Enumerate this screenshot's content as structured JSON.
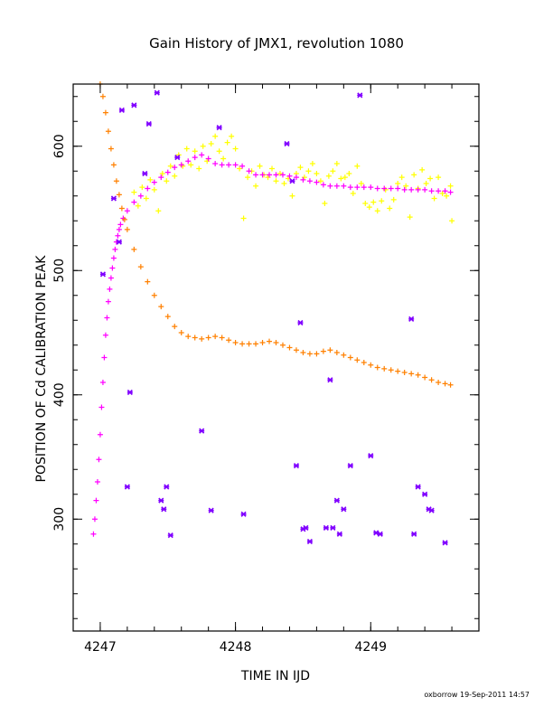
{
  "chart_data": {
    "type": "scatter",
    "title": "Gain History of JMX1, revolution 1080",
    "xlabel": "TIME IN IJD",
    "ylabel": "POSITION OF Cd CALIBRATION PEAK",
    "xlim": [
      4246.8,
      4249.8
    ],
    "ylim": [
      210,
      650
    ],
    "xticks": [
      4247,
      4248,
      4249
    ],
    "xtick_labels": [
      "4247",
      "4248",
      "4249"
    ],
    "yticks": [
      300,
      400,
      500,
      600
    ],
    "ytick_labels": [
      "300",
      "400",
      "500",
      "600"
    ],
    "grid": false,
    "legend": "none",
    "series": [
      {
        "marker": "plus",
        "color": "#FFFF00",
        "points": [
          [
            4247.25,
            563
          ],
          [
            4247.28,
            552
          ],
          [
            4247.31,
            567
          ],
          [
            4247.34,
            558
          ],
          [
            4247.37,
            573
          ],
          [
            4247.4,
            565
          ],
          [
            4247.43,
            548
          ],
          [
            4247.46,
            578
          ],
          [
            4247.49,
            572
          ],
          [
            4247.52,
            584
          ],
          [
            4247.55,
            576
          ],
          [
            4247.58,
            593
          ],
          [
            4247.61,
            584
          ],
          [
            4247.64,
            598
          ],
          [
            4247.67,
            585
          ],
          [
            4247.7,
            596
          ],
          [
            4247.73,
            582
          ],
          [
            4247.76,
            600
          ],
          [
            4247.79,
            588
          ],
          [
            4247.82,
            602
          ],
          [
            4247.85,
            608
          ],
          [
            4247.88,
            596
          ],
          [
            4247.91,
            590
          ],
          [
            4247.94,
            603
          ],
          [
            4247.97,
            608
          ],
          [
            4248.0,
            598
          ],
          [
            4248.03,
            582
          ],
          [
            4248.06,
            542
          ],
          [
            4248.09,
            575
          ],
          [
            4248.12,
            580
          ],
          [
            4248.15,
            568
          ],
          [
            4248.18,
            584
          ],
          [
            4248.21,
            577
          ],
          [
            4248.24,
            575
          ],
          [
            4248.27,
            582
          ],
          [
            4248.3,
            572
          ],
          [
            4248.33,
            578
          ],
          [
            4248.36,
            570
          ],
          [
            4248.39,
            574
          ],
          [
            4248.42,
            560
          ],
          [
            4248.45,
            578
          ],
          [
            4248.48,
            583
          ],
          [
            4248.51,
            575
          ],
          [
            4248.54,
            580
          ],
          [
            4248.57,
            586
          ],
          [
            4248.6,
            578
          ],
          [
            4248.63,
            572
          ],
          [
            4248.66,
            554
          ],
          [
            4248.69,
            576
          ],
          [
            4248.72,
            580
          ],
          [
            4248.75,
            586
          ],
          [
            4248.78,
            574
          ],
          [
            4248.81,
            575
          ],
          [
            4248.84,
            578
          ],
          [
            4248.87,
            562
          ],
          [
            4248.9,
            584
          ],
          [
            4248.93,
            570
          ],
          [
            4248.96,
            554
          ],
          [
            4248.99,
            551
          ],
          [
            4249.02,
            555
          ],
          [
            4249.05,
            548
          ],
          [
            4249.08,
            556
          ],
          [
            4249.11,
            565
          ],
          [
            4249.14,
            550
          ],
          [
            4249.17,
            557
          ],
          [
            4249.2,
            570
          ],
          [
            4249.23,
            575
          ],
          [
            4249.26,
            568
          ],
          [
            4249.29,
            543
          ],
          [
            4249.32,
            577
          ],
          [
            4249.35,
            566
          ],
          [
            4249.38,
            581
          ],
          [
            4249.41,
            570
          ],
          [
            4249.44,
            574
          ],
          [
            4249.47,
            558
          ],
          [
            4249.5,
            575
          ],
          [
            4249.53,
            562
          ],
          [
            4249.56,
            560
          ],
          [
            4249.59,
            568
          ],
          [
            4249.6,
            540
          ]
        ]
      },
      {
        "marker": "plus",
        "color": "#FF00FF",
        "points": [
          [
            4246.95,
            288
          ],
          [
            4246.96,
            300
          ],
          [
            4246.97,
            315
          ],
          [
            4246.98,
            330
          ],
          [
            4246.99,
            348
          ],
          [
            4247.0,
            368
          ],
          [
            4247.01,
            390
          ],
          [
            4247.02,
            410
          ],
          [
            4247.03,
            430
          ],
          [
            4247.04,
            448
          ],
          [
            4247.05,
            462
          ],
          [
            4247.06,
            475
          ],
          [
            4247.07,
            485
          ],
          [
            4247.08,
            494
          ],
          [
            4247.09,
            502
          ],
          [
            4247.1,
            510
          ],
          [
            4247.11,
            517
          ],
          [
            4247.12,
            523
          ],
          [
            4247.13,
            528
          ],
          [
            4247.14,
            533
          ],
          [
            4247.15,
            537
          ],
          [
            4247.17,
            542
          ],
          [
            4247.2,
            548
          ],
          [
            4247.25,
            555
          ],
          [
            4247.3,
            560
          ],
          [
            4247.35,
            566
          ],
          [
            4247.4,
            571
          ],
          [
            4247.45,
            575
          ],
          [
            4247.5,
            579
          ],
          [
            4247.55,
            583
          ],
          [
            4247.6,
            585
          ],
          [
            4247.65,
            588
          ],
          [
            4247.7,
            591
          ],
          [
            4247.75,
            593
          ],
          [
            4247.8,
            590
          ],
          [
            4247.85,
            586
          ],
          [
            4247.9,
            585
          ],
          [
            4247.95,
            585
          ],
          [
            4248.0,
            585
          ],
          [
            4248.05,
            584
          ],
          [
            4248.1,
            580
          ],
          [
            4248.15,
            577
          ],
          [
            4248.2,
            577
          ],
          [
            4248.25,
            577
          ],
          [
            4248.3,
            577
          ],
          [
            4248.35,
            577
          ],
          [
            4248.4,
            576
          ],
          [
            4248.45,
            575
          ],
          [
            4248.5,
            573
          ],
          [
            4248.55,
            572
          ],
          [
            4248.6,
            571
          ],
          [
            4248.65,
            569
          ],
          [
            4248.7,
            568
          ],
          [
            4248.75,
            568
          ],
          [
            4248.8,
            568
          ],
          [
            4248.85,
            567
          ],
          [
            4248.9,
            567
          ],
          [
            4248.95,
            567
          ],
          [
            4249.0,
            567
          ],
          [
            4249.05,
            566
          ],
          [
            4249.1,
            566
          ],
          [
            4249.15,
            566
          ],
          [
            4249.2,
            566
          ],
          [
            4249.25,
            565
          ],
          [
            4249.3,
            565
          ],
          [
            4249.35,
            565
          ],
          [
            4249.4,
            565
          ],
          [
            4249.45,
            564
          ],
          [
            4249.5,
            564
          ],
          [
            4249.55,
            564
          ],
          [
            4249.59,
            563
          ]
        ]
      },
      {
        "marker": "plus",
        "color": "#FF8000",
        "points": [
          [
            4247.0,
            650
          ],
          [
            4247.02,
            640
          ],
          [
            4247.04,
            627
          ],
          [
            4247.06,
            612
          ],
          [
            4247.08,
            598
          ],
          [
            4247.1,
            585
          ],
          [
            4247.12,
            572
          ],
          [
            4247.14,
            561
          ],
          [
            4247.16,
            550
          ],
          [
            4247.18,
            541
          ],
          [
            4247.2,
            533
          ],
          [
            4247.25,
            517
          ],
          [
            4247.3,
            503
          ],
          [
            4247.35,
            491
          ],
          [
            4247.4,
            480
          ],
          [
            4247.45,
            471
          ],
          [
            4247.5,
            463
          ],
          [
            4247.55,
            455
          ],
          [
            4247.6,
            450
          ],
          [
            4247.65,
            447
          ],
          [
            4247.7,
            446
          ],
          [
            4247.75,
            445
          ],
          [
            4247.8,
            446
          ],
          [
            4247.85,
            447
          ],
          [
            4247.9,
            446
          ],
          [
            4247.95,
            444
          ],
          [
            4248.0,
            442
          ],
          [
            4248.05,
            441
          ],
          [
            4248.1,
            441
          ],
          [
            4248.15,
            441
          ],
          [
            4248.2,
            442
          ],
          [
            4248.25,
            443
          ],
          [
            4248.3,
            442
          ],
          [
            4248.35,
            440
          ],
          [
            4248.4,
            438
          ],
          [
            4248.45,
            436
          ],
          [
            4248.5,
            434
          ],
          [
            4248.55,
            433
          ],
          [
            4248.6,
            433
          ],
          [
            4248.65,
            435
          ],
          [
            4248.7,
            436
          ],
          [
            4248.75,
            434
          ],
          [
            4248.8,
            432
          ],
          [
            4248.85,
            430
          ],
          [
            4248.9,
            428
          ],
          [
            4248.95,
            426
          ],
          [
            4249.0,
            424
          ],
          [
            4249.05,
            422
          ],
          [
            4249.1,
            421
          ],
          [
            4249.15,
            420
          ],
          [
            4249.2,
            419
          ],
          [
            4249.25,
            418
          ],
          [
            4249.3,
            417
          ],
          [
            4249.35,
            416
          ],
          [
            4249.4,
            414
          ],
          [
            4249.45,
            412
          ],
          [
            4249.5,
            410
          ],
          [
            4249.55,
            409
          ],
          [
            4249.59,
            408
          ]
        ]
      },
      {
        "marker": "star",
        "color": "#8000FF",
        "points": [
          [
            4247.02,
            497
          ],
          [
            4247.1,
            558
          ],
          [
            4247.14,
            523
          ],
          [
            4247.16,
            629
          ],
          [
            4247.2,
            326
          ],
          [
            4247.22,
            402
          ],
          [
            4247.25,
            633
          ],
          [
            4247.33,
            578
          ],
          [
            4247.36,
            618
          ],
          [
            4247.42,
            643
          ],
          [
            4247.45,
            315
          ],
          [
            4247.47,
            308
          ],
          [
            4247.49,
            326
          ],
          [
            4247.52,
            287
          ],
          [
            4247.57,
            591
          ],
          [
            4247.75,
            371
          ],
          [
            4247.82,
            307
          ],
          [
            4247.88,
            615
          ],
          [
            4248.06,
            304
          ],
          [
            4248.38,
            602
          ],
          [
            4248.42,
            572
          ],
          [
            4248.45,
            343
          ],
          [
            4248.48,
            458
          ],
          [
            4248.5,
            292
          ],
          [
            4248.52,
            293
          ],
          [
            4248.55,
            282
          ],
          [
            4248.67,
            293
          ],
          [
            4248.7,
            412
          ],
          [
            4248.72,
            293
          ],
          [
            4248.75,
            315
          ],
          [
            4248.77,
            288
          ],
          [
            4248.8,
            308
          ],
          [
            4248.85,
            343
          ],
          [
            4248.92,
            641
          ],
          [
            4249.0,
            351
          ],
          [
            4249.04,
            289
          ],
          [
            4249.07,
            288
          ],
          [
            4249.3,
            461
          ],
          [
            4249.32,
            288
          ],
          [
            4249.35,
            326
          ],
          [
            4249.4,
            320
          ],
          [
            4249.43,
            308
          ],
          [
            4249.45,
            307
          ],
          [
            4249.55,
            281
          ]
        ]
      }
    ]
  },
  "footer": {
    "credit": "oxborrow 19-Sep-2011 14:57"
  }
}
